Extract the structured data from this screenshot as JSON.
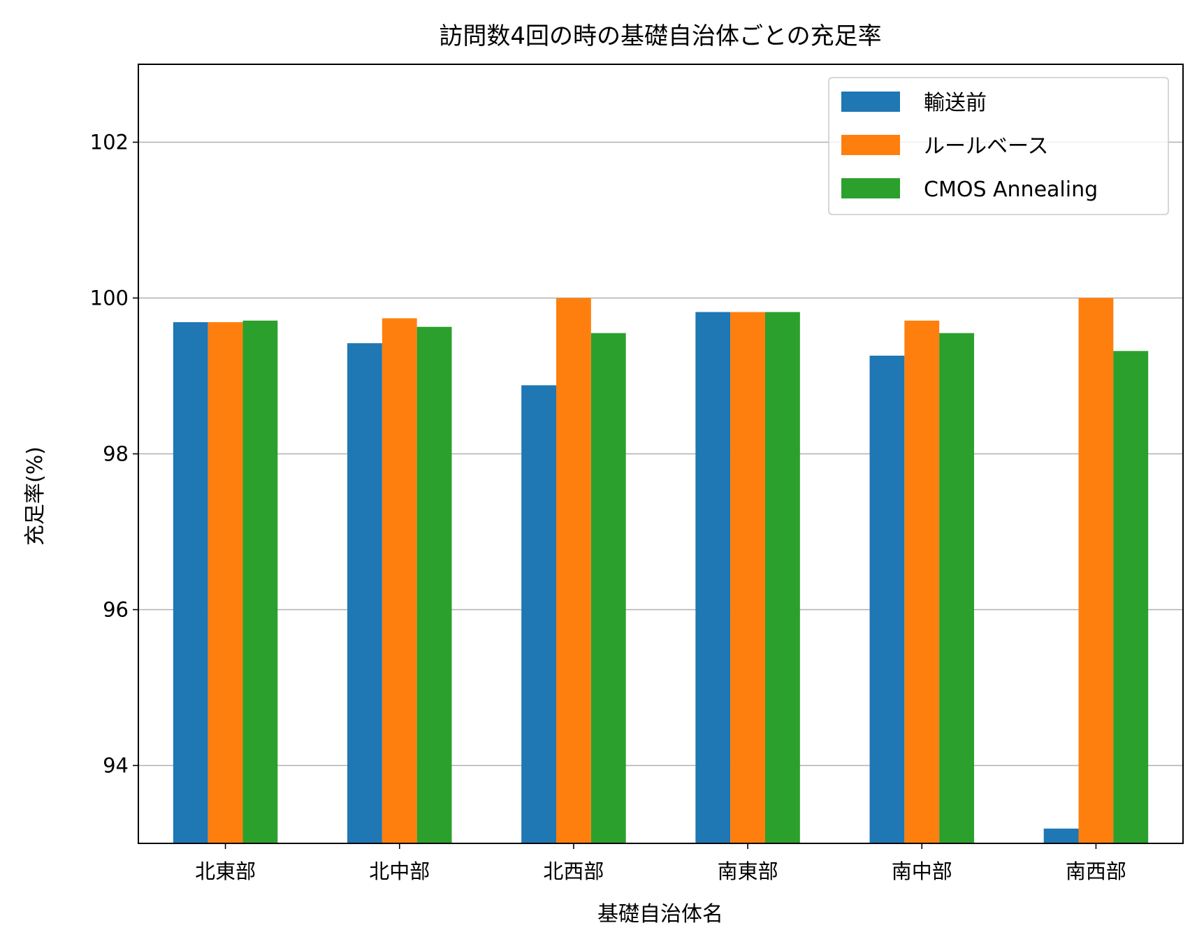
{
  "chart_data": {
    "type": "bar",
    "title": "訪問数4回の時の基礎自治体ごとの充足率",
    "xlabel": "基礎自治体名",
    "ylabel": "充足率(%)",
    "categories": [
      "北東部",
      "北中部",
      "北西部",
      "南東部",
      "南中部",
      "南西部"
    ],
    "ylim": [
      93.0,
      103.0
    ],
    "yticks": [
      94,
      96,
      98,
      100,
      102
    ],
    "grid": "y-major",
    "legend_position": "upper right",
    "series": [
      {
        "name": "輸送前",
        "color": "#1f77b4",
        "values": [
          99.69,
          99.42,
          98.88,
          99.82,
          99.26,
          93.19
        ]
      },
      {
        "name": "ルールベース",
        "color": "#ff7f0e",
        "values": [
          99.69,
          99.74,
          100.0,
          99.82,
          99.71,
          100.0
        ]
      },
      {
        "name": "CMOS Annealing",
        "color": "#2ca02c",
        "values": [
          99.71,
          99.63,
          99.55,
          99.82,
          99.55,
          99.32
        ]
      }
    ]
  }
}
